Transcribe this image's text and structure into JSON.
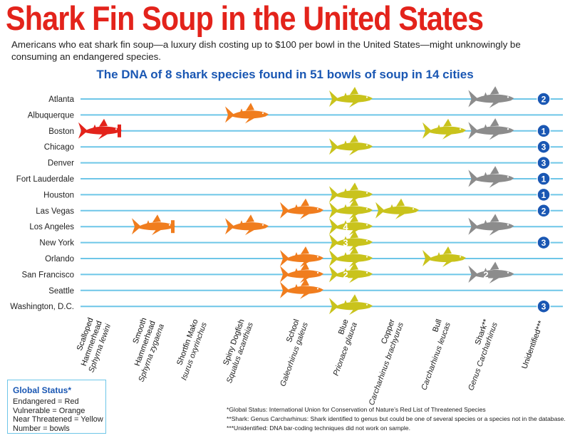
{
  "title": "Shark Fin Soup in the United States",
  "subtitle": "Americans who eat shark fin soup—a luxury dish costing up to $100 per bowl in the United States—might unknowingly be consuming an endangered species.",
  "colors": {
    "endangered": "#e3231b",
    "vulnerable": "#f07d1e",
    "near_threatened": "#c9c31c",
    "genus": "#8c8c8c",
    "unidentified": "#1a57b3",
    "row_line": "#6ec6e8"
  },
  "legend": {
    "title": "Global Status*",
    "lines": [
      "Endangered = Red",
      "Vulnerable = Orange",
      "Near Threatened = Yellow",
      "Number = bowls"
    ]
  },
  "footnotes": [
    "*Global Status: International Union for Conservation of Nature’s Red List of Threatened Species",
    "**Shark: Genus Carcharhinus: Shark identified to genus but could be one of several species or a species not in the database.",
    "***Unidentified: DNA bar-coding techniques did not work on sample."
  ],
  "chart_data": {
    "type": "table",
    "title": "The DNA of 8 shark species found in 51 bowls of soup in 14 cities",
    "rows": [
      "Atlanta",
      "Albuquerque",
      "Boston",
      "Chicago",
      "Denver",
      "Fort Lauderdale",
      "Houston",
      "Las Vegas",
      "Los Angeles",
      "New York",
      "Orlando",
      "San Francisco",
      "Seattle",
      "Washington, D.C."
    ],
    "columns": [
      {
        "name": "Scalloped Hammerhead",
        "name_lines": [
          "Scalloped",
          "Hammerhead"
        ],
        "latin": "Sphyrna lewini",
        "status": "endangered",
        "icon": "hammerhead-shark-icon"
      },
      {
        "name": "Smooth Hammerhead",
        "name_lines": [
          "Smooth",
          "Hammerhead"
        ],
        "latin": "Sphyrna zygaena",
        "status": "vulnerable",
        "icon": "hammerhead-shark-icon"
      },
      {
        "name": "Shortfin Mako",
        "name_lines": [
          "Shortfin Mako"
        ],
        "latin": "Isurus oxyrinchus",
        "status": "vulnerable",
        "icon": "shark-icon"
      },
      {
        "name": "Spiny Dogfish",
        "name_lines": [
          "Spiny Dogfish"
        ],
        "latin": "Squalus acanthias",
        "status": "vulnerable",
        "icon": "shark-icon"
      },
      {
        "name": "School",
        "name_lines": [
          "School"
        ],
        "latin": "Galeorhinus galeus",
        "status": "vulnerable",
        "icon": "shark-icon"
      },
      {
        "name": "Blue",
        "name_lines": [
          "Blue"
        ],
        "latin": "Prionace glauca",
        "status": "near_threatened",
        "icon": "shark-icon"
      },
      {
        "name": "Copper",
        "name_lines": [
          "Copper"
        ],
        "latin": "Carcharhinus brachyurus",
        "status": "near_threatened",
        "icon": "shark-icon"
      },
      {
        "name": "Bull",
        "name_lines": [
          "Bull"
        ],
        "latin": "Carcharhinus leucas",
        "status": "near_threatened",
        "icon": "shark-icon"
      },
      {
        "name": "Shark**",
        "name_lines": [
          "Shark**"
        ],
        "latin": "Genus Carcharhinus",
        "status": "genus",
        "icon": "shark-icon"
      },
      {
        "name": "Unidentified***",
        "name_lines": [
          "Unidentified***"
        ],
        "latin": "",
        "status": "unidentified",
        "icon": "number-circle"
      }
    ],
    "cells": [
      {
        "row": 0,
        "col": 5,
        "count": 1
      },
      {
        "row": 0,
        "col": 8,
        "count": 1
      },
      {
        "row": 0,
        "col": 9,
        "count": 2
      },
      {
        "row": 1,
        "col": 3,
        "count": 1
      },
      {
        "row": 2,
        "col": 0,
        "count": 1
      },
      {
        "row": 2,
        "col": 7,
        "count": 1
      },
      {
        "row": 2,
        "col": 8,
        "count": 1
      },
      {
        "row": 2,
        "col": 9,
        "count": 1
      },
      {
        "row": 3,
        "col": 5,
        "count": 1
      },
      {
        "row": 3,
        "col": 9,
        "count": 3
      },
      {
        "row": 4,
        "col": 9,
        "count": 3
      },
      {
        "row": 5,
        "col": 8,
        "count": 1
      },
      {
        "row": 5,
        "col": 9,
        "count": 1
      },
      {
        "row": 6,
        "col": 5,
        "count": 1
      },
      {
        "row": 6,
        "col": 9,
        "count": 1
      },
      {
        "row": 7,
        "col": 4,
        "count": 1
      },
      {
        "row": 7,
        "col": 5,
        "count": 1
      },
      {
        "row": 7,
        "col": 6,
        "count": 1
      },
      {
        "row": 7,
        "col": 9,
        "count": 2
      },
      {
        "row": 8,
        "col": 1,
        "count": 1
      },
      {
        "row": 8,
        "col": 3,
        "count": 1
      },
      {
        "row": 8,
        "col": 5,
        "count": 4
      },
      {
        "row": 8,
        "col": 8,
        "count": 1
      },
      {
        "row": 9,
        "col": 5,
        "count": 3
      },
      {
        "row": 9,
        "col": 9,
        "count": 3
      },
      {
        "row": 10,
        "col": 4,
        "count": 1
      },
      {
        "row": 10,
        "col": 5,
        "count": 1
      },
      {
        "row": 10,
        "col": 7,
        "count": 1
      },
      {
        "row": 11,
        "col": 4,
        "count": 1
      },
      {
        "row": 11,
        "col": 5,
        "count": 2
      },
      {
        "row": 11,
        "col": 8,
        "count": 2
      },
      {
        "row": 12,
        "col": 4,
        "count": 1
      },
      {
        "row": 13,
        "col": 5,
        "count": 1
      },
      {
        "row": 13,
        "col": 9,
        "count": 3
      }
    ]
  }
}
